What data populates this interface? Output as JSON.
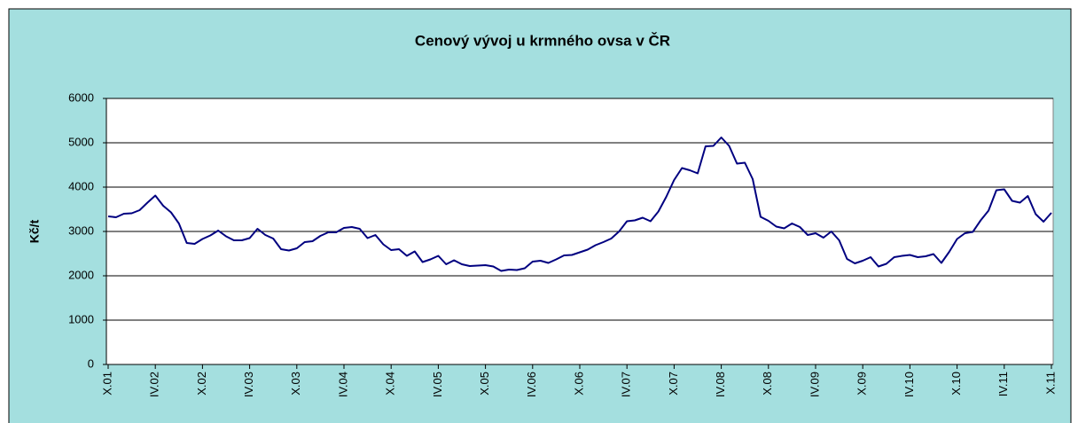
{
  "chart_data": {
    "type": "line",
    "title": "Cenový vývoj u krmného ovsa v ČR",
    "y_label": "Kč/t",
    "categories": [
      "X.01",
      null,
      null,
      null,
      null,
      null,
      "IV.02",
      null,
      null,
      null,
      null,
      null,
      "X.02",
      null,
      null,
      null,
      null,
      null,
      "IV.03",
      null,
      null,
      null,
      null,
      null,
      "X.03",
      null,
      null,
      null,
      null,
      null,
      "IV.04",
      null,
      null,
      null,
      null,
      null,
      "X.04",
      null,
      null,
      null,
      null,
      null,
      "IV.05",
      null,
      null,
      null,
      null,
      null,
      "X.05",
      null,
      null,
      null,
      null,
      null,
      "IV.06",
      null,
      null,
      null,
      null,
      null,
      "X.06",
      null,
      null,
      null,
      null,
      null,
      "IV.07",
      null,
      null,
      null,
      null,
      null,
      "X.07",
      null,
      null,
      null,
      null,
      null,
      "IV.08",
      null,
      null,
      null,
      null,
      null,
      "X.08",
      null,
      null,
      null,
      null,
      null,
      "IV.09",
      null,
      null,
      null,
      null,
      null,
      "X.09",
      null,
      null,
      null,
      null,
      null,
      "IV.10",
      null,
      null,
      null,
      null,
      null,
      "X.10",
      null,
      null,
      null,
      null,
      null,
      "IV.11",
      null,
      null,
      null,
      null,
      null,
      "X.11"
    ],
    "values": [
      3340,
      3320,
      3400,
      3410,
      3480,
      3650,
      3810,
      3580,
      3430,
      3180,
      2740,
      2720,
      2830,
      2910,
      3020,
      2890,
      2800,
      2800,
      2850,
      3060,
      2920,
      2840,
      2600,
      2570,
      2620,
      2760,
      2780,
      2900,
      2980,
      2980,
      3080,
      3100,
      3060,
      2850,
      2920,
      2710,
      2580,
      2600,
      2450,
      2550,
      2310,
      2370,
      2450,
      2260,
      2350,
      2260,
      2220,
      2230,
      2240,
      2210,
      2110,
      2140,
      2130,
      2170,
      2320,
      2340,
      2290,
      2370,
      2460,
      2470,
      2530,
      2590,
      2690,
      2760,
      2840,
      3000,
      3230,
      3250,
      3310,
      3230,
      3450,
      3780,
      4160,
      4430,
      4380,
      4310,
      4920,
      4930,
      5120,
      4930,
      4530,
      4550,
      4180,
      3330,
      3240,
      3110,
      3070,
      3180,
      3100,
      2920,
      2960,
      2860,
      3000,
      2800,
      2380,
      2280,
      2340,
      2420,
      2210,
      2270,
      2420,
      2450,
      2470,
      2420,
      2440,
      2490,
      2290,
      2540,
      2830,
      2960,
      2990,
      3250,
      3470,
      3930,
      3950,
      3690,
      3650,
      3800,
      3390,
      3220,
      3420
    ],
    "color": "#000080",
    "ylim": [
      0,
      6000
    ],
    "yticks": [
      0,
      1000,
      2000,
      3000,
      4000,
      5000,
      6000
    ],
    "grid": true
  }
}
